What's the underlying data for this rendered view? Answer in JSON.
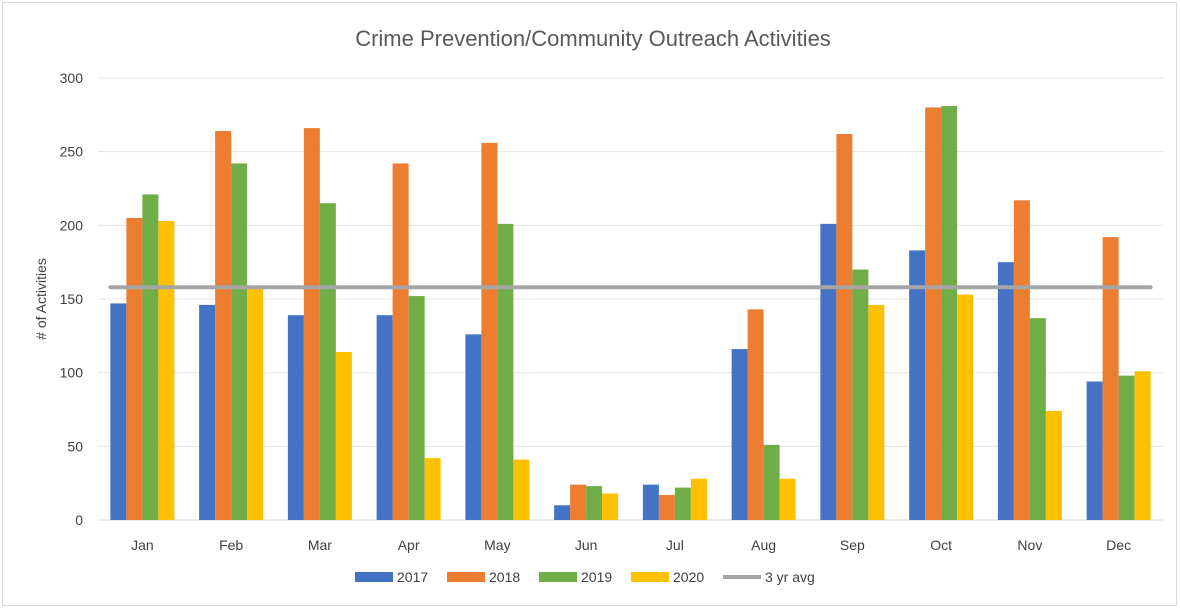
{
  "chart_data": {
    "type": "bar",
    "title": "Crime Prevention/Community Outreach Activities",
    "xlabel": "",
    "ylabel": "# of Activities",
    "ylim": [
      0,
      300
    ],
    "yticks": [
      0,
      50,
      100,
      150,
      200,
      250,
      300
    ],
    "grid": true,
    "legend_position": "bottom",
    "categories": [
      "Jan",
      "Feb",
      "Mar",
      "Apr",
      "May",
      "Jun",
      "Jul",
      "Aug",
      "Sep",
      "Oct",
      "Nov",
      "Dec"
    ],
    "series": [
      {
        "name": "2017",
        "color": "#4472c4",
        "values": [
          147,
          146,
          139,
          139,
          126,
          10,
          24,
          116,
          201,
          183,
          175,
          94
        ]
      },
      {
        "name": "2018",
        "color": "#ed7d31",
        "values": [
          205,
          264,
          266,
          242,
          256,
          24,
          17,
          143,
          262,
          280,
          217,
          192
        ]
      },
      {
        "name": "2019",
        "color": "#70ad47",
        "values": [
          221,
          242,
          215,
          152,
          201,
          23,
          22,
          51,
          170,
          281,
          137,
          98
        ]
      },
      {
        "name": "2020",
        "color": "#ffc000",
        "values": [
          203,
          157,
          114,
          42,
          41,
          18,
          28,
          28,
          146,
          153,
          74,
          101
        ]
      }
    ],
    "reference_line": {
      "name": "3 yr avg",
      "type": "line",
      "color": "#a5a5a5",
      "value": 158
    }
  }
}
